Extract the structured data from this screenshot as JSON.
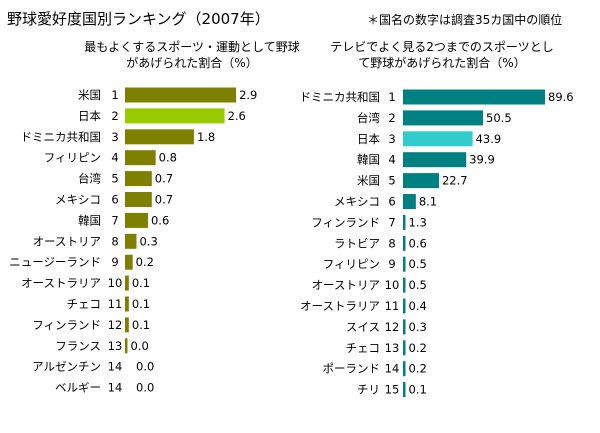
{
  "title": "野球愛好度国別ランキング（2007年）",
  "note": "＊国名の数字は調査35カ国中の順位",
  "chart_data": [
    {
      "type": "bar",
      "orientation": "horizontal",
      "title_lines": [
        "最もよくするスポーツ・運動として野球",
        "があげられた割合（%）"
      ],
      "color": "#808000",
      "highlight_color": "#99cc00",
      "highlight": "日本",
      "rows": [
        {
          "country": "米国",
          "rank": "1",
          "value": 2.9,
          "label": "2.9"
        },
        {
          "country": "日本",
          "rank": "2",
          "value": 2.6,
          "label": "2.6"
        },
        {
          "country": "ドミニカ共和国",
          "rank": "3",
          "value": 1.8,
          "label": "1.8"
        },
        {
          "country": "フィリピン",
          "rank": "4",
          "value": 0.8,
          "label": "0.8"
        },
        {
          "country": "台湾",
          "rank": "5",
          "value": 0.7,
          "label": "0.7"
        },
        {
          "country": "メキシコ",
          "rank": "6",
          "value": 0.7,
          "label": "0.7"
        },
        {
          "country": "韓国",
          "rank": "7",
          "value": 0.6,
          "label": "0.6"
        },
        {
          "country": "オーストリア",
          "rank": "8",
          "value": 0.3,
          "label": "0.3"
        },
        {
          "country": "ニュージーランド",
          "rank": "9",
          "value": 0.2,
          "label": "0.2"
        },
        {
          "country": "オーストラリア",
          "rank": "10",
          "value": 0.1,
          "label": "0.1"
        },
        {
          "country": "チェコ",
          "rank": "11",
          "value": 0.1,
          "label": "0.1"
        },
        {
          "country": "フィンランド",
          "rank": "12",
          "value": 0.1,
          "label": "0.1"
        },
        {
          "country": "フランス",
          "rank": "13",
          "value": 0.0,
          "label": "0.0",
          "bar_visible": true
        },
        {
          "country": "アルゼンチン",
          "rank": "14",
          "value": 0.0,
          "label": "0.0",
          "bar_visible": false
        },
        {
          "country": "ベルギー",
          "rank": "14",
          "value": 0.0,
          "label": "0.0",
          "bar_visible": false
        }
      ]
    },
    {
      "type": "bar",
      "orientation": "horizontal",
      "title_lines": [
        "テレビでよく見る2つまでのスポーツとし",
        "て野球があげられた割合（%）"
      ],
      "color": "#008080",
      "highlight_color": "#33cccc",
      "highlight": "日本",
      "rows": [
        {
          "country": "ドミニカ共和国",
          "rank": "1",
          "value": 89.6,
          "label": "89.6"
        },
        {
          "country": "台湾",
          "rank": "2",
          "value": 50.5,
          "label": "50.5"
        },
        {
          "country": "日本",
          "rank": "3",
          "value": 43.9,
          "label": "43.9"
        },
        {
          "country": "韓国",
          "rank": "4",
          "value": 39.9,
          "label": "39.9"
        },
        {
          "country": "米国",
          "rank": "5",
          "value": 22.7,
          "label": "22.7"
        },
        {
          "country": "メキシコ",
          "rank": "6",
          "value": 8.1,
          "label": "8.1"
        },
        {
          "country": "フィンランド",
          "rank": "7",
          "value": 1.3,
          "label": "1.3"
        },
        {
          "country": "ラトビア",
          "rank": "8",
          "value": 0.6,
          "label": "0.6"
        },
        {
          "country": "フィリピン",
          "rank": "9",
          "value": 0.5,
          "label": "0.5"
        },
        {
          "country": "オーストリア",
          "rank": "10",
          "value": 0.5,
          "label": "0.5"
        },
        {
          "country": "オーストラリア",
          "rank": "11",
          "value": 0.4,
          "label": "0.4"
        },
        {
          "country": "スイス",
          "rank": "12",
          "value": 0.3,
          "label": "0.3"
        },
        {
          "country": "チェコ",
          "rank": "13",
          "value": 0.2,
          "label": "0.2"
        },
        {
          "country": "ポーランド",
          "rank": "14",
          "value": 0.2,
          "label": "0.2"
        },
        {
          "country": "チリ",
          "rank": "15",
          "value": 0.1,
          "label": "0.1"
        }
      ]
    }
  ]
}
